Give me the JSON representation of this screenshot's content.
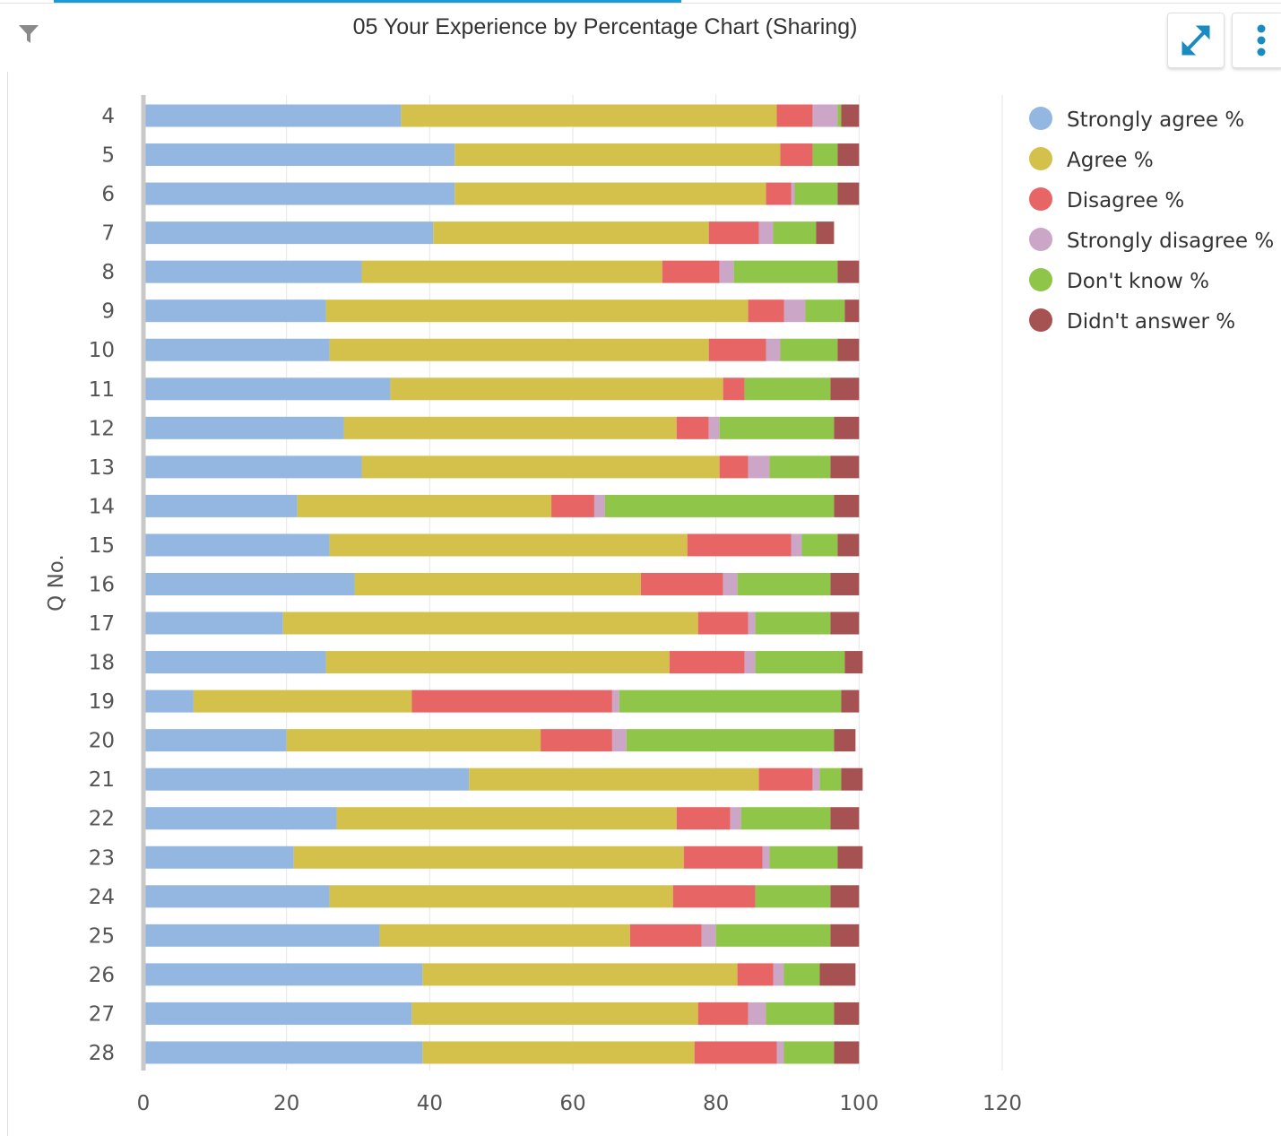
{
  "header": {
    "title": "05 Your Experience by Percentage Chart (Sharing)"
  },
  "toolbar": {
    "filter_icon": "filter-icon",
    "expand_icon": "expand-icon",
    "menu_icon": "more-vertical-icon",
    "accent_color": "#1a8bc0"
  },
  "chart_data": {
    "type": "bar",
    "orientation": "horizontal",
    "stacked": true,
    "title": "05 Your Experience by Percentage Chart (Sharing)",
    "ylabel": "Q No.",
    "xlabel": "",
    "xlim": [
      0,
      120
    ],
    "xticks": [
      "0",
      "20",
      "40",
      "60",
      "80",
      "100",
      "120"
    ],
    "grid": "vertical",
    "legend_position": "right",
    "categories": [
      "4",
      "5",
      "6",
      "7",
      "8",
      "9",
      "10",
      "11",
      "12",
      "13",
      "14",
      "15",
      "16",
      "17",
      "18",
      "19",
      "20",
      "21",
      "22",
      "23",
      "24",
      "25",
      "26",
      "27",
      "28"
    ],
    "series": [
      {
        "name": "Strongly agree %",
        "color": "#93b7e0",
        "values": [
          36,
          43.5,
          43.5,
          40.5,
          30.5,
          25.5,
          26,
          34.5,
          28,
          30.5,
          21.5,
          26,
          29.5,
          19.5,
          25.5,
          7,
          20,
          45.5,
          27,
          21,
          26,
          33,
          39,
          37.5,
          39
        ]
      },
      {
        "name": "Agree %",
        "color": "#d3c14b",
        "values": [
          52.5,
          45.5,
          43.5,
          38.5,
          42,
          59,
          53,
          46.5,
          46.5,
          50,
          35.5,
          50,
          40,
          58,
          48,
          30.5,
          35.5,
          40.5,
          47.5,
          54.5,
          48,
          35,
          44,
          40,
          38
        ]
      },
      {
        "name": "Disagree %",
        "color": "#e86565",
        "values": [
          5,
          4.5,
          3.5,
          7,
          8,
          5,
          8,
          3,
          4.5,
          4,
          6,
          14.5,
          11.5,
          7,
          10.5,
          28,
          10,
          7.5,
          7.5,
          11,
          11.5,
          10,
          5,
          7,
          11.5
        ]
      },
      {
        "name": "Strongly disagree %",
        "color": "#cca6c6",
        "values": [
          3.5,
          0,
          0.5,
          2,
          2,
          3,
          2,
          0,
          1.5,
          3,
          1.5,
          1.5,
          2,
          1,
          1.5,
          1,
          2,
          1,
          1.5,
          1,
          0,
          2,
          1.5,
          2.5,
          1
        ]
      },
      {
        "name": "Don't know %",
        "color": "#8fc548",
        "values": [
          0.5,
          3.5,
          6,
          6,
          14.5,
          5.5,
          8,
          12,
          16,
          8.5,
          32,
          5,
          13,
          10.5,
          12.5,
          31,
          29,
          3,
          12.5,
          9.5,
          10.5,
          16,
          5,
          9.5,
          7
        ]
      },
      {
        "name": "Didn't answer %",
        "color": "#a65252",
        "values": [
          2.5,
          3,
          3,
          2.5,
          3,
          2,
          3,
          4,
          3.5,
          4,
          3.5,
          3,
          4,
          4,
          2.5,
          2.5,
          3,
          3,
          4,
          3.5,
          4,
          4,
          5,
          3.5,
          3.5
        ]
      }
    ]
  }
}
